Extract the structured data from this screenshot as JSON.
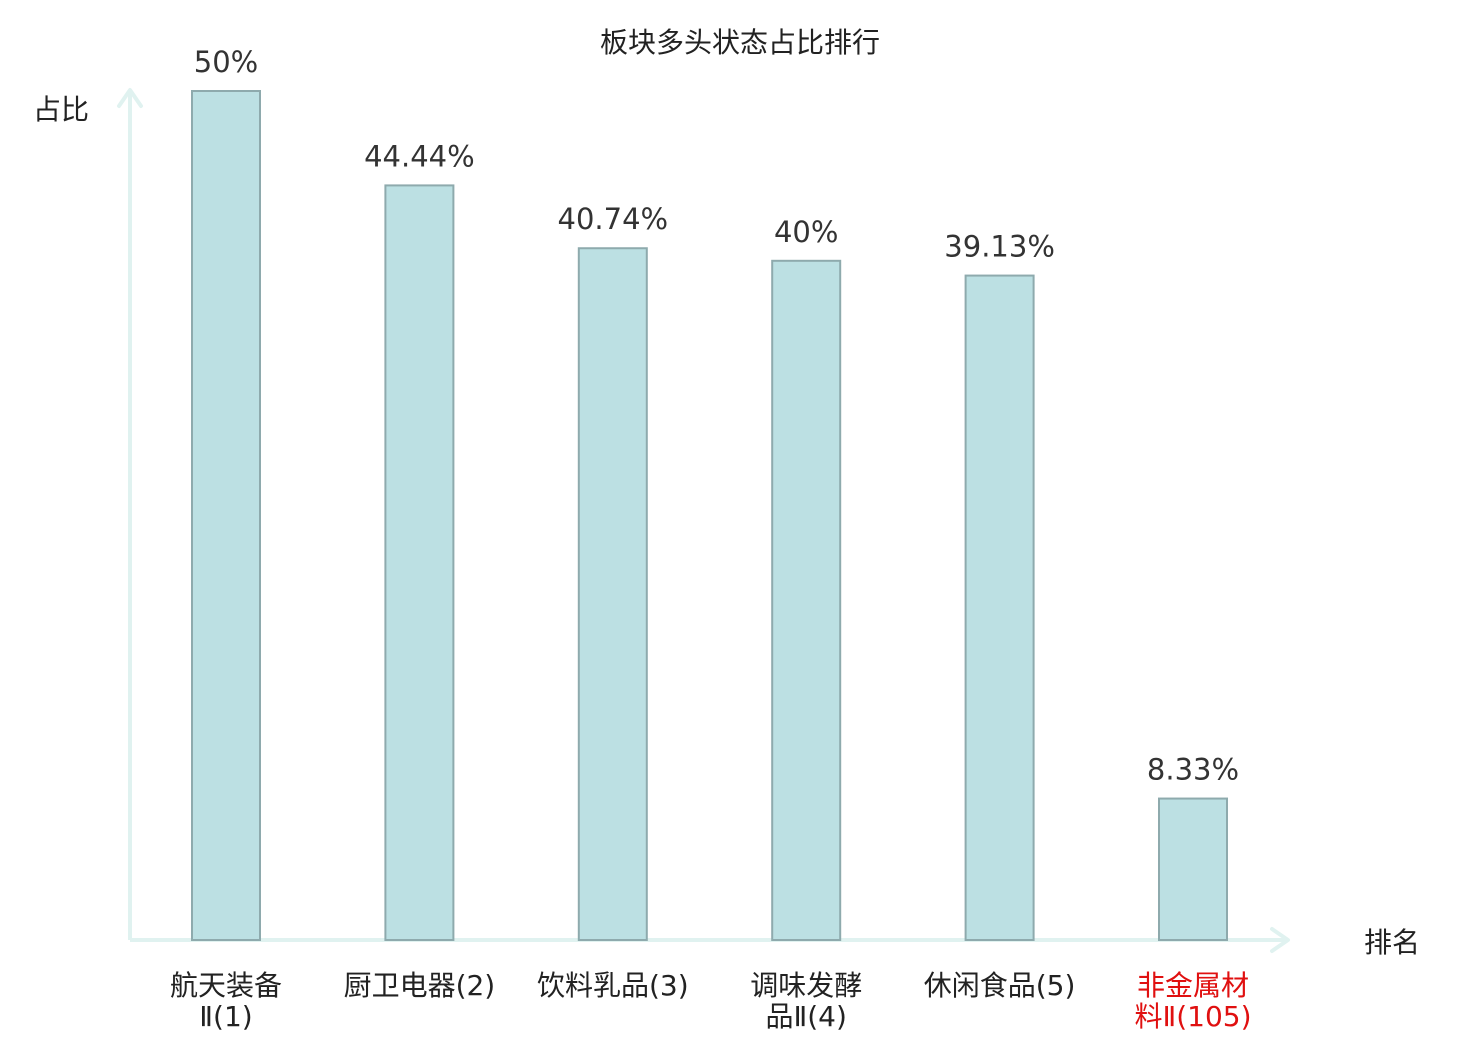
{
  "chart_data": {
    "type": "bar",
    "title": "板块多头状态占比排行",
    "ylabel": "占比",
    "xlabel": "排名",
    "ylim": [
      0,
      50
    ],
    "categories": [
      [
        "航天装备",
        "Ⅱ(1)"
      ],
      [
        "厨卫电器(2)"
      ],
      [
        "饮料乳品(3)"
      ],
      [
        "调味发酵",
        "品Ⅱ(4)"
      ],
      [
        "休闲食品(5)"
      ],
      [
        "非金属材",
        "料Ⅱ(105)"
      ]
    ],
    "values": [
      50,
      44.44,
      40.74,
      40,
      39.13,
      8.33
    ],
    "value_labels": [
      "50%",
      "44.44%",
      "40.74%",
      "40%",
      "39.13%",
      "8.33%"
    ],
    "highlight_index": 5,
    "colors": {
      "bar_fill": "#bce0e3",
      "bar_stroke": "#8eaaad",
      "axis": "#e0f2f0",
      "text": "#333333",
      "label": "#222222",
      "highlight": "#e01010"
    }
  }
}
